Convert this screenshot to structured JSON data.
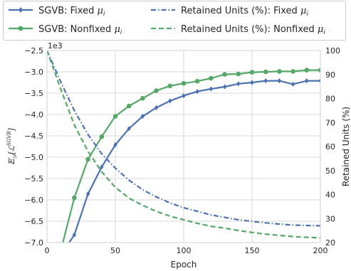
{
  "chart_data": {
    "type": "line",
    "xlabel": "Epoch",
    "ylabel_left": "𝔼",
    "ylabel_left_sub": "𝒟",
    "ylabel_left_body": "[ℒ",
    "ylabel_left_sup": "SGVB",
    "ylabel_left_close": "]",
    "ylabel_right": "Retained Units (%)",
    "offset_label": "1e3",
    "xlim": [
      0,
      200
    ],
    "ylim_left": [
      -7.0,
      -2.5
    ],
    "ylim_right": [
      20,
      100
    ],
    "x_ticks": [
      "0",
      "50",
      "100",
      "150",
      "200"
    ],
    "y_left_ticks": [
      "−7.0",
      "−6.5",
      "−6.0",
      "−5.5",
      "−5.0",
      "−4.5",
      "−4.0",
      "−3.5",
      "−3.0",
      "−2.5"
    ],
    "y_right_ticks": [
      "20",
      "30",
      "40",
      "50",
      "60",
      "70",
      "80",
      "90",
      "100"
    ],
    "grid": true,
    "legend_position": "top",
    "series": [
      {
        "name": "SGVB: Fixed μ_i",
        "legend_label": "SGVB: Fixed ",
        "legend_math": "μ",
        "legend_sub": "i",
        "axis": "left",
        "style": "solid-diamond",
        "color": "#4c72b0",
        "x": [
          10,
          20,
          30,
          40,
          50,
          60,
          70,
          80,
          90,
          100,
          110,
          120,
          130,
          140,
          150,
          160,
          170,
          180,
          190,
          200
        ],
        "values": [
          -7.3,
          -6.82,
          -5.86,
          -5.23,
          -4.71,
          -4.33,
          -4.04,
          -3.84,
          -3.68,
          -3.56,
          -3.46,
          -3.4,
          -3.35,
          -3.28,
          -3.25,
          -3.21,
          -3.21,
          -3.29,
          -3.21,
          -3.21
        ]
      },
      {
        "name": "SGVB: Nonfixed μ_i",
        "legend_label": "SGVB: Nonfixed ",
        "legend_math": "μ",
        "legend_sub": "i",
        "axis": "left",
        "style": "solid-circle",
        "color": "#55a868",
        "x": [
          10,
          20,
          30,
          40,
          50,
          60,
          70,
          80,
          90,
          100,
          110,
          120,
          130,
          140,
          150,
          160,
          170,
          180,
          190,
          200
        ],
        "values": [
          -7.2,
          -5.95,
          -5.05,
          -4.52,
          -4.04,
          -3.8,
          -3.62,
          -3.44,
          -3.33,
          -3.27,
          -3.22,
          -3.15,
          -3.06,
          -3.05,
          -3.01,
          -3.0,
          -2.99,
          -2.99,
          -2.96,
          -2.96
        ]
      },
      {
        "name": "Retained Units (%): Fixed μ_i",
        "legend_label": "Retained Units (%): Fixed ",
        "legend_math": "μ",
        "legend_sub": "i",
        "axis": "right",
        "style": "dashdot",
        "color": "#4c72b0",
        "x": [
          0,
          10,
          20,
          30,
          40,
          50,
          60,
          70,
          80,
          90,
          100,
          110,
          120,
          130,
          140,
          150,
          160,
          170,
          180,
          190,
          200
        ],
        "values": [
          100,
          87,
          75,
          65,
          57,
          51,
          46,
          42,
          39,
          36.5,
          34.5,
          33,
          31.5,
          30.5,
          29.5,
          28.8,
          28.2,
          27.7,
          27.3,
          27.1,
          27
        ]
      },
      {
        "name": "Retained Units (%): Nonfixed μ_i",
        "legend_label": "Retained Units (%): Nonfixed ",
        "legend_math": "μ",
        "legend_sub": "i",
        "axis": "right",
        "style": "dashed",
        "color": "#55a868",
        "x": [
          0,
          10,
          20,
          30,
          40,
          50,
          60,
          70,
          80,
          90,
          100,
          110,
          120,
          130,
          140,
          150,
          160,
          170,
          180,
          190,
          200
        ],
        "values": [
          100,
          84,
          69,
          58,
          49.5,
          43,
          38.5,
          35.5,
          33,
          31,
          29.5,
          28,
          26.8,
          26,
          25,
          24.2,
          23.5,
          23,
          22.5,
          22.2,
          22
        ]
      }
    ]
  }
}
